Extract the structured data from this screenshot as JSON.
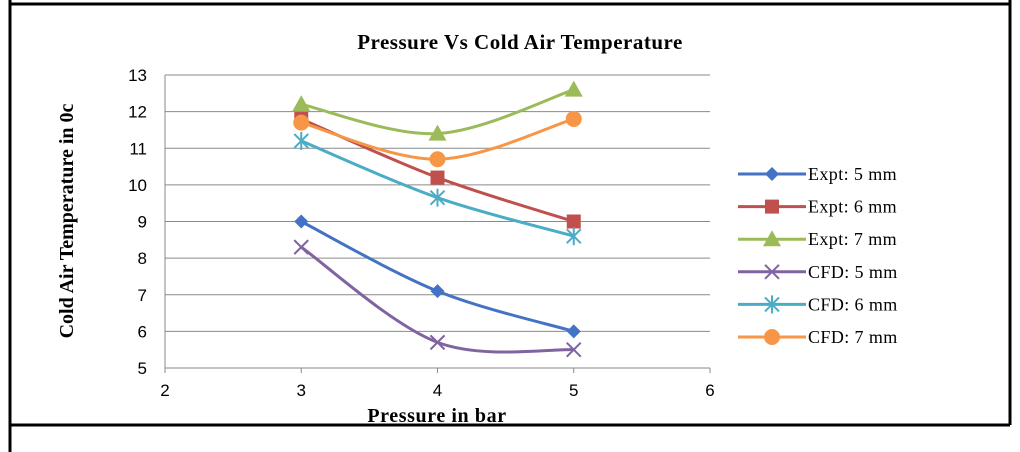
{
  "chart_data": {
    "type": "line",
    "title": "Pressure Vs Cold Air Temperature",
    "xlabel": "Pressure in bar",
    "ylabel": "Cold Air Temperature in 0c",
    "xlim": [
      2,
      6
    ],
    "ylim": [
      5,
      13
    ],
    "xticks": [
      "2",
      "3",
      "4",
      "5",
      "6"
    ],
    "yticks": [
      "5",
      "6",
      "7",
      "8",
      "9",
      "10",
      "11",
      "12",
      "13"
    ],
    "grid": "horizontal",
    "legend": "right",
    "x": [
      3,
      4,
      5
    ],
    "series": [
      {
        "name": "Expt: 5 mm",
        "values": [
          9.0,
          7.1,
          6.0
        ],
        "color": "#4472C4",
        "marker": "diamond"
      },
      {
        "name": "Expt: 6 mm",
        "values": [
          11.8,
          10.2,
          9.0
        ],
        "color": "#C0504D",
        "marker": "square"
      },
      {
        "name": "Expt: 7 mm",
        "values": [
          12.2,
          11.4,
          12.6
        ],
        "color": "#9BBB59",
        "marker": "triangle"
      },
      {
        "name": "CFD: 5 mm",
        "values": [
          8.3,
          5.7,
          5.5
        ],
        "color": "#8064A2",
        "marker": "x"
      },
      {
        "name": "CFD: 6 mm",
        "values": [
          11.2,
          9.65,
          8.6
        ],
        "color": "#4BACC6",
        "marker": "star"
      },
      {
        "name": "CFD: 7 mm",
        "values": [
          11.7,
          10.7,
          11.8
        ],
        "color": "#F79646",
        "marker": "circle"
      }
    ]
  }
}
